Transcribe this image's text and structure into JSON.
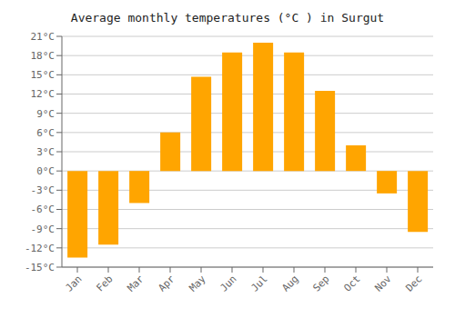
{
  "chart_data": {
    "type": "bar",
    "title": "Average monthly temperatures (°C ) in Surgut",
    "categories": [
      "Jan",
      "Feb",
      "Mar",
      "Apr",
      "May",
      "Jun",
      "Jul",
      "Aug",
      "Sep",
      "Oct",
      "Nov",
      "Dec"
    ],
    "values": [
      -13.5,
      -11.5,
      -5.0,
      6.0,
      14.7,
      18.5,
      20.0,
      18.5,
      12.5,
      4.0,
      -3.5,
      -9.5
    ],
    "color": "#FFA500",
    "ylim": [
      -15,
      21
    ],
    "yticks": [
      {
        "value": -15,
        "label": "-15°C"
      },
      {
        "value": -12,
        "label": "-12°C"
      },
      {
        "value": -9,
        "label": "-9°C"
      },
      {
        "value": -6,
        "label": "-6°C"
      },
      {
        "value": -3,
        "label": "-3°C"
      },
      {
        "value": 0,
        "label": "0°C"
      },
      {
        "value": 3,
        "label": "3°C"
      },
      {
        "value": 6,
        "label": "6°C"
      },
      {
        "value": 9,
        "label": "9°C"
      },
      {
        "value": 12,
        "label": "12°C"
      },
      {
        "value": 15,
        "label": "15°C"
      },
      {
        "value": 18,
        "label": "18°C"
      },
      {
        "value": 21,
        "label": "21°C"
      }
    ],
    "grid": true
  }
}
